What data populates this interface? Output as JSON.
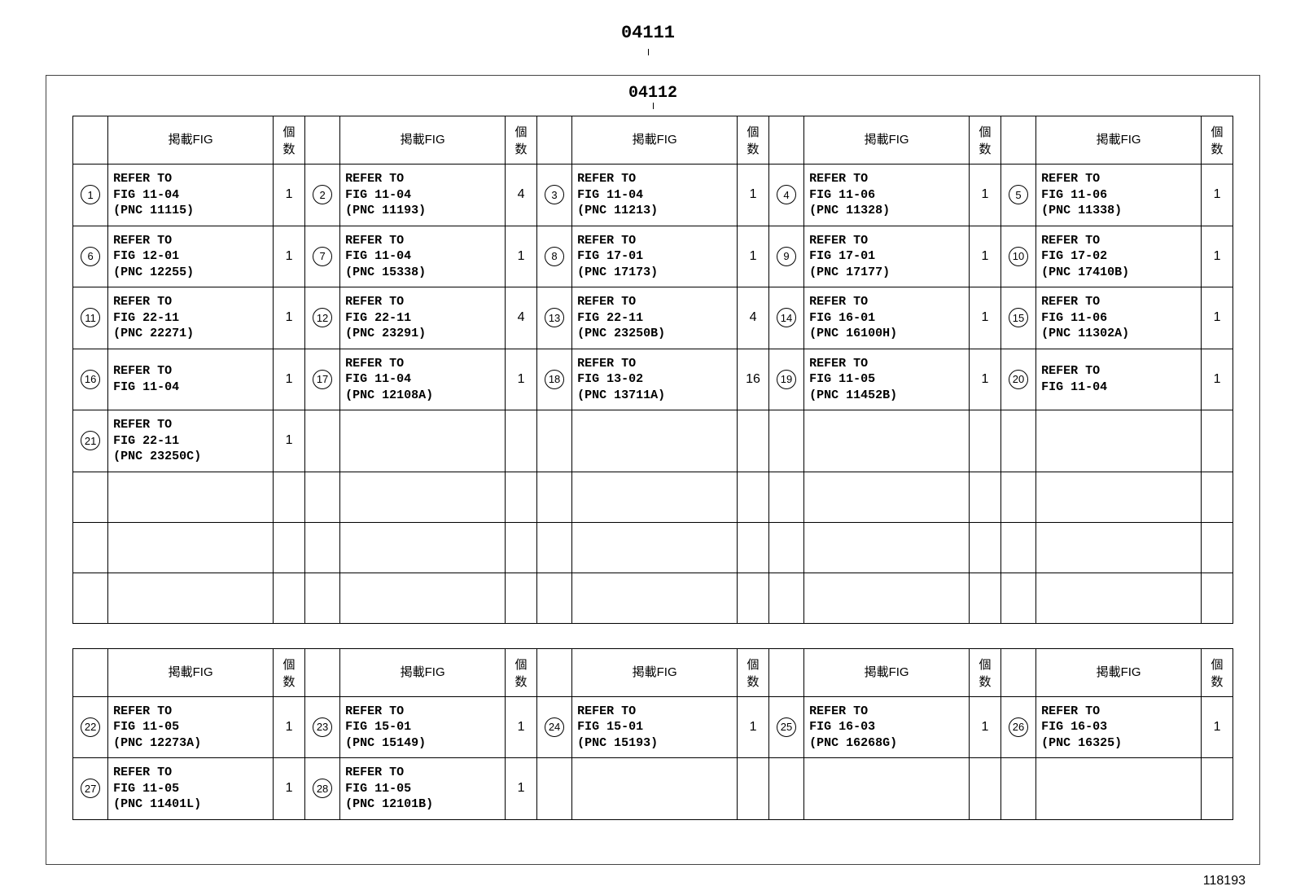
{
  "page": {
    "header1": "04111",
    "header2": "04112",
    "footer": "118193"
  },
  "table_headers": {
    "fig": "掲載FIG",
    "qty": "個数"
  },
  "table1": {
    "rows": [
      [
        {
          "n": "1",
          "fig": "REFER TO\nFIG 11-04\n(PNC 11115)",
          "qty": "1"
        },
        {
          "n": "2",
          "fig": "REFER TO\nFIG 11-04\n(PNC 11193)",
          "qty": "4"
        },
        {
          "n": "3",
          "fig": "REFER TO\nFIG 11-04\n(PNC 11213)",
          "qty": "1"
        },
        {
          "n": "4",
          "fig": "REFER TO\nFIG 11-06\n(PNC 11328)",
          "qty": "1"
        },
        {
          "n": "5",
          "fig": "REFER TO\nFIG 11-06\n(PNC 11338)",
          "qty": "1"
        }
      ],
      [
        {
          "n": "6",
          "fig": "REFER TO\nFIG 12-01\n(PNC 12255)",
          "qty": "1"
        },
        {
          "n": "7",
          "fig": "REFER TO\nFIG 11-04\n(PNC 15338)",
          "qty": "1"
        },
        {
          "n": "8",
          "fig": "REFER TO\nFIG 17-01\n(PNC 17173)",
          "qty": "1"
        },
        {
          "n": "9",
          "fig": "REFER TO\nFIG 17-01\n(PNC 17177)",
          "qty": "1"
        },
        {
          "n": "10",
          "fig": "REFER TO\nFIG 17-02\n(PNC 17410B)",
          "qty": "1"
        }
      ],
      [
        {
          "n": "11",
          "fig": "REFER TO\nFIG 22-11\n(PNC 22271)",
          "qty": "1"
        },
        {
          "n": "12",
          "fig": "REFER TO\nFIG 22-11\n(PNC 23291)",
          "qty": "4"
        },
        {
          "n": "13",
          "fig": "REFER TO\nFIG 22-11\n(PNC 23250B)",
          "qty": "4"
        },
        {
          "n": "14",
          "fig": "REFER TO\nFIG 16-01\n(PNC 16100H)",
          "qty": "1"
        },
        {
          "n": "15",
          "fig": "REFER TO\nFIG 11-06\n(PNC 11302A)",
          "qty": "1"
        }
      ],
      [
        {
          "n": "16",
          "fig": "REFER TO\nFIG 11-04",
          "qty": "1"
        },
        {
          "n": "17",
          "fig": "REFER TO\nFIG 11-04\n(PNC 12108A)",
          "qty": "1"
        },
        {
          "n": "18",
          "fig": "REFER TO\nFIG 13-02\n(PNC 13711A)",
          "qty": "16"
        },
        {
          "n": "19",
          "fig": "REFER TO\nFIG 11-05\n(PNC 11452B)",
          "qty": "1"
        },
        {
          "n": "20",
          "fig": "REFER TO\nFIG 11-04",
          "qty": "1"
        }
      ],
      [
        {
          "n": "21",
          "fig": "REFER TO\nFIG 22-11\n(PNC 23250C)",
          "qty": "1"
        },
        {
          "n": "",
          "fig": "",
          "qty": ""
        },
        {
          "n": "",
          "fig": "",
          "qty": ""
        },
        {
          "n": "",
          "fig": "",
          "qty": ""
        },
        {
          "n": "",
          "fig": "",
          "qty": ""
        }
      ],
      [
        {
          "n": "",
          "fig": "",
          "qty": ""
        },
        {
          "n": "",
          "fig": "",
          "qty": ""
        },
        {
          "n": "",
          "fig": "",
          "qty": ""
        },
        {
          "n": "",
          "fig": "",
          "qty": ""
        },
        {
          "n": "",
          "fig": "",
          "qty": ""
        }
      ],
      [
        {
          "n": "",
          "fig": "",
          "qty": ""
        },
        {
          "n": "",
          "fig": "",
          "qty": ""
        },
        {
          "n": "",
          "fig": "",
          "qty": ""
        },
        {
          "n": "",
          "fig": "",
          "qty": ""
        },
        {
          "n": "",
          "fig": "",
          "qty": ""
        }
      ],
      [
        {
          "n": "",
          "fig": "",
          "qty": ""
        },
        {
          "n": "",
          "fig": "",
          "qty": ""
        },
        {
          "n": "",
          "fig": "",
          "qty": ""
        },
        {
          "n": "",
          "fig": "",
          "qty": ""
        },
        {
          "n": "",
          "fig": "",
          "qty": ""
        }
      ]
    ]
  },
  "table2": {
    "rows": [
      [
        {
          "n": "22",
          "fig": "REFER TO\nFIG 11-05\n(PNC 12273A)",
          "qty": "1"
        },
        {
          "n": "23",
          "fig": "REFER TO\nFIG 15-01\n(PNC 15149)",
          "qty": "1"
        },
        {
          "n": "24",
          "fig": "REFER TO\nFIG 15-01\n(PNC 15193)",
          "qty": "1"
        },
        {
          "n": "25",
          "fig": "REFER TO\nFIG 16-03\n(PNC 16268G)",
          "qty": "1"
        },
        {
          "n": "26",
          "fig": "REFER TO\nFIG 16-03\n(PNC 16325)",
          "qty": "1"
        }
      ],
      [
        {
          "n": "27",
          "fig": "REFER TO\nFIG 11-05\n(PNC 11401L)",
          "qty": "1"
        },
        {
          "n": "28",
          "fig": "REFER TO\nFIG 11-05\n(PNC 12101B)",
          "qty": "1"
        },
        {
          "n": "",
          "fig": "",
          "qty": ""
        },
        {
          "n": "",
          "fig": "",
          "qty": ""
        },
        {
          "n": "",
          "fig": "",
          "qty": ""
        }
      ]
    ]
  }
}
